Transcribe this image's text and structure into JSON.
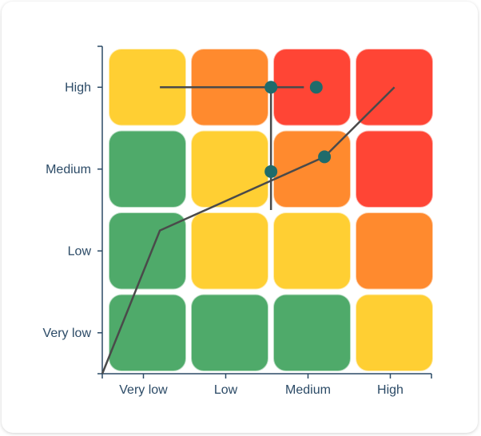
{
  "chart_data": {
    "type": "heatmap",
    "x_categories": [
      "Very low",
      "Low",
      "Medium",
      "High"
    ],
    "y_categories": [
      "Very low",
      "Low",
      "Medium",
      "High"
    ],
    "cells": [
      [
        "green",
        "green",
        "green",
        "yellow"
      ],
      [
        "green",
        "yellow",
        "yellow",
        "orange"
      ],
      [
        "green",
        "yellow",
        "orange",
        "red"
      ],
      [
        "yellow",
        "orange",
        "red",
        "red"
      ]
    ],
    "colors": {
      "green": "#4faa6a",
      "yellow": "#ffcf33",
      "orange": "#ff8a2e",
      "red": "#ff4535",
      "axis": "#2b4a66",
      "line": "#4a4a4a",
      "point": "#1f6b6b"
    },
    "xlim": [
      -0.5,
      3.5
    ],
    "ylim": [
      -0.5,
      3.5
    ],
    "grid": false,
    "overlay": {
      "lines": [
        {
          "points": [
            [
              -0.5,
              -0.5
            ],
            [
              0.2,
              1.25
            ],
            [
              2.2,
              2.15
            ],
            [
              3.05,
              3.0
            ]
          ]
        },
        {
          "points": [
            [
              0.2,
              3.0
            ],
            [
              1.95,
              3.0
            ]
          ]
        },
        {
          "points": [
            [
              1.55,
              3.0
            ],
            [
              1.55,
              1.5
            ]
          ]
        }
      ],
      "points": [
        [
          1.55,
          3.0
        ],
        [
          2.1,
          3.0
        ],
        [
          2.2,
          2.15
        ],
        [
          1.55,
          1.97
        ]
      ]
    }
  }
}
